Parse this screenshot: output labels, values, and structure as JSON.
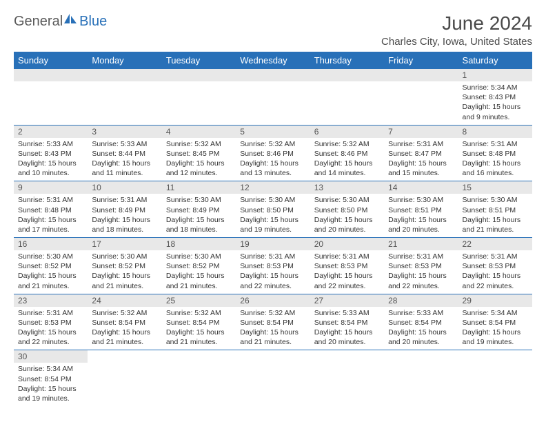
{
  "logo": {
    "part1": "General",
    "part2": "Blue"
  },
  "title": "June 2024",
  "location": "Charles City, Iowa, United States",
  "dayHeaders": [
    "Sunday",
    "Monday",
    "Tuesday",
    "Wednesday",
    "Thursday",
    "Friday",
    "Saturday"
  ],
  "colors": {
    "headerBg": "#2870b8",
    "headerText": "#ffffff",
    "dayNumBg": "#e8e8e8",
    "borderColor": "#2870b8",
    "logoGray": "#5a5a5a",
    "logoBlue": "#2870b8"
  },
  "weeks": [
    [
      {
        "n": "",
        "sunrise": "",
        "sunset": "",
        "daylight": ""
      },
      {
        "n": "",
        "sunrise": "",
        "sunset": "",
        "daylight": ""
      },
      {
        "n": "",
        "sunrise": "",
        "sunset": "",
        "daylight": ""
      },
      {
        "n": "",
        "sunrise": "",
        "sunset": "",
        "daylight": ""
      },
      {
        "n": "",
        "sunrise": "",
        "sunset": "",
        "daylight": ""
      },
      {
        "n": "",
        "sunrise": "",
        "sunset": "",
        "daylight": ""
      },
      {
        "n": "1",
        "sunrise": "Sunrise: 5:34 AM",
        "sunset": "Sunset: 8:43 PM",
        "daylight": "Daylight: 15 hours and 9 minutes."
      }
    ],
    [
      {
        "n": "2",
        "sunrise": "Sunrise: 5:33 AM",
        "sunset": "Sunset: 8:43 PM",
        "daylight": "Daylight: 15 hours and 10 minutes."
      },
      {
        "n": "3",
        "sunrise": "Sunrise: 5:33 AM",
        "sunset": "Sunset: 8:44 PM",
        "daylight": "Daylight: 15 hours and 11 minutes."
      },
      {
        "n": "4",
        "sunrise": "Sunrise: 5:32 AM",
        "sunset": "Sunset: 8:45 PM",
        "daylight": "Daylight: 15 hours and 12 minutes."
      },
      {
        "n": "5",
        "sunrise": "Sunrise: 5:32 AM",
        "sunset": "Sunset: 8:46 PM",
        "daylight": "Daylight: 15 hours and 13 minutes."
      },
      {
        "n": "6",
        "sunrise": "Sunrise: 5:32 AM",
        "sunset": "Sunset: 8:46 PM",
        "daylight": "Daylight: 15 hours and 14 minutes."
      },
      {
        "n": "7",
        "sunrise": "Sunrise: 5:31 AM",
        "sunset": "Sunset: 8:47 PM",
        "daylight": "Daylight: 15 hours and 15 minutes."
      },
      {
        "n": "8",
        "sunrise": "Sunrise: 5:31 AM",
        "sunset": "Sunset: 8:48 PM",
        "daylight": "Daylight: 15 hours and 16 minutes."
      }
    ],
    [
      {
        "n": "9",
        "sunrise": "Sunrise: 5:31 AM",
        "sunset": "Sunset: 8:48 PM",
        "daylight": "Daylight: 15 hours and 17 minutes."
      },
      {
        "n": "10",
        "sunrise": "Sunrise: 5:31 AM",
        "sunset": "Sunset: 8:49 PM",
        "daylight": "Daylight: 15 hours and 18 minutes."
      },
      {
        "n": "11",
        "sunrise": "Sunrise: 5:30 AM",
        "sunset": "Sunset: 8:49 PM",
        "daylight": "Daylight: 15 hours and 18 minutes."
      },
      {
        "n": "12",
        "sunrise": "Sunrise: 5:30 AM",
        "sunset": "Sunset: 8:50 PM",
        "daylight": "Daylight: 15 hours and 19 minutes."
      },
      {
        "n": "13",
        "sunrise": "Sunrise: 5:30 AM",
        "sunset": "Sunset: 8:50 PM",
        "daylight": "Daylight: 15 hours and 20 minutes."
      },
      {
        "n": "14",
        "sunrise": "Sunrise: 5:30 AM",
        "sunset": "Sunset: 8:51 PM",
        "daylight": "Daylight: 15 hours and 20 minutes."
      },
      {
        "n": "15",
        "sunrise": "Sunrise: 5:30 AM",
        "sunset": "Sunset: 8:51 PM",
        "daylight": "Daylight: 15 hours and 21 minutes."
      }
    ],
    [
      {
        "n": "16",
        "sunrise": "Sunrise: 5:30 AM",
        "sunset": "Sunset: 8:52 PM",
        "daylight": "Daylight: 15 hours and 21 minutes."
      },
      {
        "n": "17",
        "sunrise": "Sunrise: 5:30 AM",
        "sunset": "Sunset: 8:52 PM",
        "daylight": "Daylight: 15 hours and 21 minutes."
      },
      {
        "n": "18",
        "sunrise": "Sunrise: 5:30 AM",
        "sunset": "Sunset: 8:52 PM",
        "daylight": "Daylight: 15 hours and 21 minutes."
      },
      {
        "n": "19",
        "sunrise": "Sunrise: 5:31 AM",
        "sunset": "Sunset: 8:53 PM",
        "daylight": "Daylight: 15 hours and 22 minutes."
      },
      {
        "n": "20",
        "sunrise": "Sunrise: 5:31 AM",
        "sunset": "Sunset: 8:53 PM",
        "daylight": "Daylight: 15 hours and 22 minutes."
      },
      {
        "n": "21",
        "sunrise": "Sunrise: 5:31 AM",
        "sunset": "Sunset: 8:53 PM",
        "daylight": "Daylight: 15 hours and 22 minutes."
      },
      {
        "n": "22",
        "sunrise": "Sunrise: 5:31 AM",
        "sunset": "Sunset: 8:53 PM",
        "daylight": "Daylight: 15 hours and 22 minutes."
      }
    ],
    [
      {
        "n": "23",
        "sunrise": "Sunrise: 5:31 AM",
        "sunset": "Sunset: 8:53 PM",
        "daylight": "Daylight: 15 hours and 22 minutes."
      },
      {
        "n": "24",
        "sunrise": "Sunrise: 5:32 AM",
        "sunset": "Sunset: 8:54 PM",
        "daylight": "Daylight: 15 hours and 21 minutes."
      },
      {
        "n": "25",
        "sunrise": "Sunrise: 5:32 AM",
        "sunset": "Sunset: 8:54 PM",
        "daylight": "Daylight: 15 hours and 21 minutes."
      },
      {
        "n": "26",
        "sunrise": "Sunrise: 5:32 AM",
        "sunset": "Sunset: 8:54 PM",
        "daylight": "Daylight: 15 hours and 21 minutes."
      },
      {
        "n": "27",
        "sunrise": "Sunrise: 5:33 AM",
        "sunset": "Sunset: 8:54 PM",
        "daylight": "Daylight: 15 hours and 20 minutes."
      },
      {
        "n": "28",
        "sunrise": "Sunrise: 5:33 AM",
        "sunset": "Sunset: 8:54 PM",
        "daylight": "Daylight: 15 hours and 20 minutes."
      },
      {
        "n": "29",
        "sunrise": "Sunrise: 5:34 AM",
        "sunset": "Sunset: 8:54 PM",
        "daylight": "Daylight: 15 hours and 19 minutes."
      }
    ],
    [
      {
        "n": "30",
        "sunrise": "Sunrise: 5:34 AM",
        "sunset": "Sunset: 8:54 PM",
        "daylight": "Daylight: 15 hours and 19 minutes."
      },
      {
        "n": "",
        "sunrise": "",
        "sunset": "",
        "daylight": ""
      },
      {
        "n": "",
        "sunrise": "",
        "sunset": "",
        "daylight": ""
      },
      {
        "n": "",
        "sunrise": "",
        "sunset": "",
        "daylight": ""
      },
      {
        "n": "",
        "sunrise": "",
        "sunset": "",
        "daylight": ""
      },
      {
        "n": "",
        "sunrise": "",
        "sunset": "",
        "daylight": ""
      },
      {
        "n": "",
        "sunrise": "",
        "sunset": "",
        "daylight": ""
      }
    ]
  ]
}
